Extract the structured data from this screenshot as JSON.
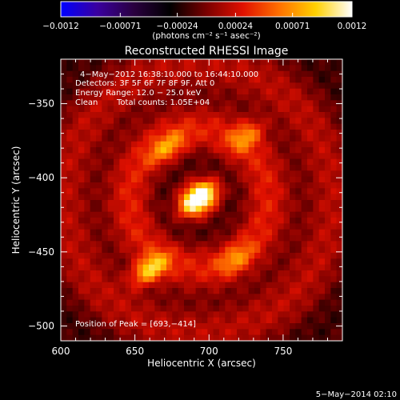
{
  "chart_data": {
    "type": "heatmap",
    "title": "Reconstructed RHESSI Image",
    "xlabel": "Heliocentric X (arcsec)",
    "ylabel": "Heliocentric Y (arcsec)",
    "xlim": [
      600,
      790
    ],
    "ylim": [
      -510,
      -320
    ],
    "x_ticks": [
      600,
      650,
      700,
      750
    ],
    "x_tick_labels": [
      "600",
      "650",
      "700",
      "750"
    ],
    "y_ticks": [
      -350,
      -400,
      -450,
      -500
    ],
    "y_tick_labels": [
      "−350",
      "−400",
      "−450",
      "−500"
    ],
    "colorbar": {
      "range": [
        -0.0012,
        0.0012
      ],
      "ticks": [
        -0.0012,
        -0.00071,
        -0.00024,
        0.00024,
        0.00071,
        0.0012
      ],
      "tick_labels": [
        "−0.0012",
        "−0.00071",
        "−0.00024",
        "0.00024",
        "0.00071",
        "0.0012"
      ],
      "units": "(photons cm⁻² s⁻¹ asec⁻²)",
      "colormap": [
        "#0000ff",
        "#3a00a0",
        "#2a0040",
        "#000000",
        "#7a0000",
        "#e01000",
        "#ff7000",
        "#ffd000",
        "#ffffff"
      ]
    },
    "annotations": [
      "4−May−2012 16:38:10.000 to 16:44:10.000",
      "Detectors: 3F 5F 6F 7F 8F 9F, Att 0",
      "Energy Range: 12.0 − 25.0 keV",
      "Clean",
      "Total counts: 1.05E+04"
    ],
    "peak_label": "Position of Peak = [693,−414]",
    "peak": [
      693,
      -414
    ],
    "sources": [
      {
        "x": 693,
        "y": -414,
        "amp": 1.0
      },
      {
        "x": 660,
        "y": -462,
        "amp": 0.7
      },
      {
        "x": 672,
        "y": -380,
        "amp": 0.45
      },
      {
        "x": 725,
        "y": -372,
        "amp": 0.4
      },
      {
        "x": 718,
        "y": -455,
        "amp": 0.35
      }
    ]
  },
  "footer_timestamp": "5−May−2014 02:10"
}
